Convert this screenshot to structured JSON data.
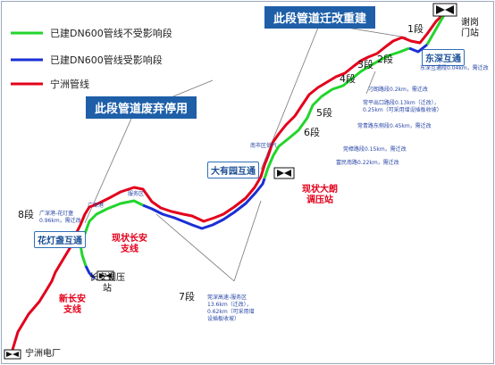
{
  "legend": {
    "green": "已建DN600管线不受影响段",
    "blue": "已建DN600管线受影响段",
    "red": "宁洲管线"
  },
  "banners": {
    "relocate": "此段管道迁改重建",
    "abandon": "此段管道废弃停用"
  },
  "interchanges": {
    "dongshen": "东深互通",
    "dayouyuan": "大有园互通",
    "huadengkan": "花灯盏互通"
  },
  "segments": [
    "1段",
    "2段",
    "3段",
    "4段",
    "5段",
    "6段",
    "7段",
    "8段"
  ],
  "stations": {
    "xiegang": "谢岗\n门站",
    "xiandalang": "现状大朗\n调压站",
    "xianchangan": "现状长安\n支线",
    "changan": "长安调压\n站",
    "xinchangan": "新长安\n支线",
    "ningzhou": "宁洲电厂"
  },
  "notes": {
    "n1": "东深互通段0.04km，需迁改",
    "n2": "刁朗路段0.2km，需迁改",
    "n3": "常平出口路段0.13km（迁改），\n0.25km（可采用增设插板收坡）",
    "n4": "常青路东侧段0.45km，需迁改",
    "n5": "莞樟路段0.15km，需迁改",
    "n6": "富民南路0.22km，需迁改",
    "n7": "莞深高速-服务区\n13.6km（迁改），\n0.62km（可采用增\n设插板收坡）",
    "n8": "广深港-花灯盏\n0.96km，需迁改",
    "service_area": "服务区",
    "guangshen": "广深港",
    "power_supply": "南市区供气"
  },
  "colors": {
    "green": "#22d52b",
    "blue": "#1a2fd6",
    "red": "#e3001b",
    "banner": "#1e5fa8"
  }
}
